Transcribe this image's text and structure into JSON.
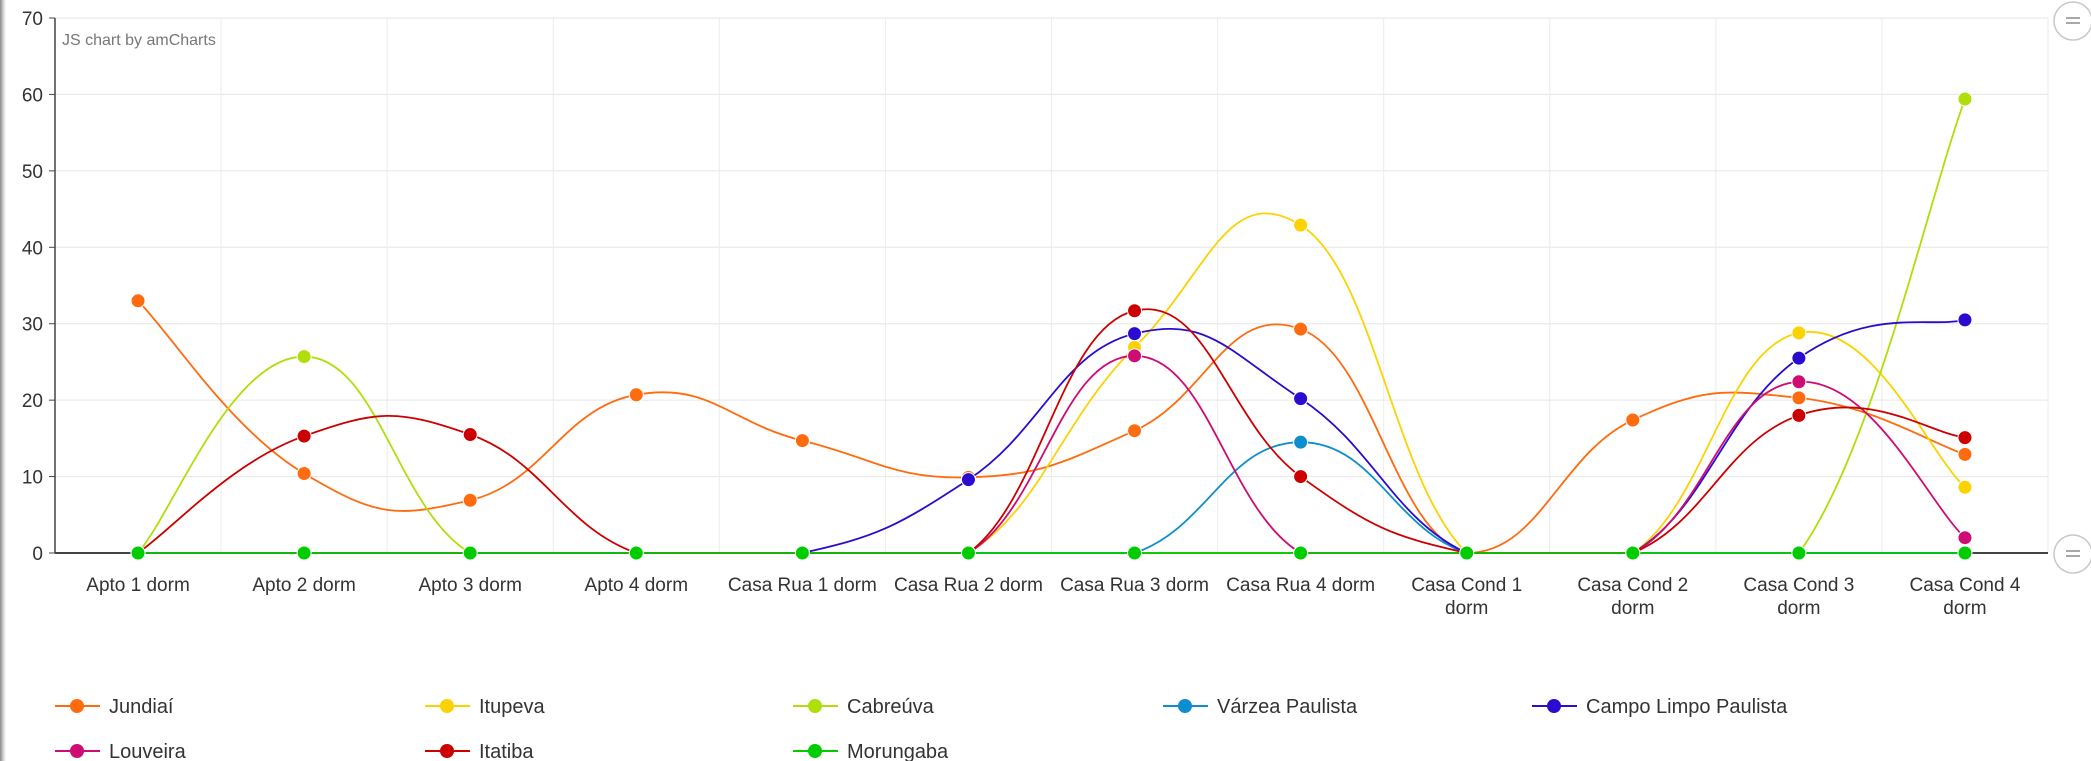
{
  "credit": "JS chart by amCharts",
  "chart_data": {
    "type": "line",
    "ylim": [
      0,
      70
    ],
    "yticks": [
      "0",
      "10",
      "20",
      "30",
      "40",
      "50",
      "60",
      "70"
    ],
    "categories": [
      [
        "Apto 1 dorm"
      ],
      [
        "Apto 2 dorm"
      ],
      [
        "Apto 3 dorm"
      ],
      [
        "Apto 4 dorm"
      ],
      [
        "Casa Rua 1 dorm"
      ],
      [
        "Casa Rua 2 dorm"
      ],
      [
        "Casa Rua 3 dorm"
      ],
      [
        "Casa Rua 4 dorm"
      ],
      [
        "Casa Cond 1",
        "dorm"
      ],
      [
        "Casa Cond 2",
        "dorm"
      ],
      [
        "Casa Cond 3",
        "dorm"
      ],
      [
        "Casa Cond 4",
        "dorm"
      ]
    ],
    "grid": true,
    "legend_position": "bottom",
    "series": [
      {
        "name": "Jundiaí",
        "color": "#ff6b0f",
        "values": [
          33,
          10.4,
          6.9,
          20.7,
          14.7,
          9.9,
          16,
          29.3,
          0,
          17.4,
          20.3,
          12.9
        ]
      },
      {
        "name": "Itupeva",
        "color": "#fcd202",
        "values": [
          0,
          0,
          0,
          0,
          0,
          0,
          26.9,
          42.9,
          0,
          0,
          28.8,
          8.6
        ]
      },
      {
        "name": "Cabreúva",
        "color": "#b0de09",
        "values": [
          0,
          25.7,
          0,
          0,
          0,
          0,
          0,
          0,
          0,
          0,
          0,
          59.4
        ]
      },
      {
        "name": "Várzea Paulista",
        "color": "#0d8ecf",
        "values": [
          0,
          0,
          0,
          0,
          0,
          0,
          0,
          14.5,
          0,
          0,
          0,
          0
        ]
      },
      {
        "name": "Campo Limpo Paulista",
        "color": "#2a0cd0",
        "values": [
          0,
          0,
          0,
          0,
          0,
          9.6,
          28.7,
          20.2,
          0,
          0,
          25.5,
          30.5
        ]
      },
      {
        "name": "Louveira",
        "color": "#cd0d74",
        "values": [
          0,
          0,
          0,
          0,
          0,
          0,
          25.8,
          0,
          0,
          0,
          22.4,
          2
        ]
      },
      {
        "name": "Itatiba",
        "color": "#cc0000",
        "values": [
          0,
          15.3,
          15.5,
          0,
          0,
          0,
          31.7,
          10,
          0,
          0,
          18,
          15.1
        ]
      },
      {
        "name": "Morungaba",
        "color": "#00cc00",
        "values": [
          0,
          0,
          0,
          0,
          0,
          0,
          0,
          0,
          0,
          0,
          0,
          0
        ]
      }
    ]
  }
}
